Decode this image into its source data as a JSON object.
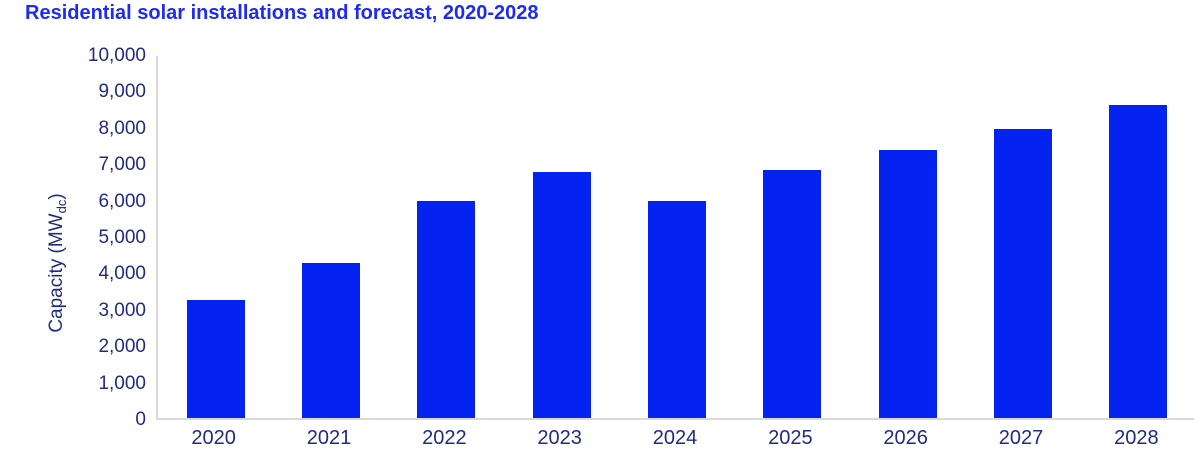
{
  "chart_data": {
    "type": "bar",
    "title": "Residential solar installations and forecast, 2020-2028",
    "categories": [
      "2020",
      "2021",
      "2022",
      "2023",
      "2024",
      "2025",
      "2026",
      "2027",
      "2028"
    ],
    "values": [
      3250,
      4250,
      5950,
      6750,
      5950,
      6800,
      7350,
      7950,
      8600
    ],
    "xlabel": "",
    "ylabel": "Capacity (MWdc)",
    "ylabel_parts": {
      "prefix": "Capacity (MW",
      "subscript": "dc",
      "suffix": ")"
    },
    "ylim": [
      0,
      10000
    ],
    "ytick_step": 1000,
    "ytick_labels": [
      "0",
      "1,000",
      "2,000",
      "3,000",
      "4,000",
      "5,000",
      "6,000",
      "7,000",
      "8,000",
      "9,000",
      "10,000"
    ],
    "grid": false,
    "legend": false,
    "colors": {
      "bar": "#0523f0",
      "title": "#1d2bf5",
      "axis_text": "#1f2c80",
      "axis_line": "#d9d9d9"
    }
  }
}
